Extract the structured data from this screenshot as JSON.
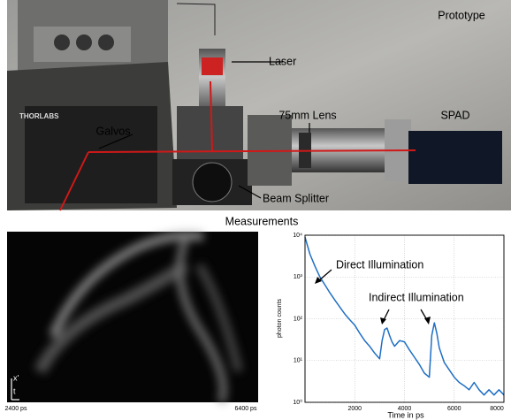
{
  "photo": {
    "labels": [
      "Prototype",
      "Laser",
      "75mm Lens",
      "SPAD",
      "Galvos",
      "Beam Splitter"
    ]
  },
  "section_title": "Measurements",
  "transient_image": {
    "start_label": "2400 ps",
    "end_label": "6400 ps",
    "axis_labels": [
      "x'",
      "t"
    ]
  },
  "chart_data": {
    "type": "line",
    "x_label": "Time in ps",
    "y_label": "photon counts",
    "annotations": [
      "Direct Illumination",
      "Indirect Illumination"
    ],
    "x": [
      0,
      200,
      400,
      600,
      800,
      1000,
      1200,
      1400,
      1600,
      1800,
      2000,
      2200,
      2400,
      2600,
      2800,
      3000,
      3100,
      3200,
      3300,
      3400,
      3500,
      3600,
      3800,
      4000,
      4200,
      4400,
      4600,
      4800,
      5000,
      5100,
      5200,
      5300,
      5400,
      5600,
      5800,
      6000,
      6200,
      6400,
      6600,
      6800,
      7000,
      7200,
      7400,
      7600,
      7800,
      8000
    ],
    "values": [
      9000,
      3500,
      1800,
      1000,
      650,
      420,
      280,
      190,
      130,
      95,
      70,
      45,
      30,
      22,
      15,
      11,
      30,
      55,
      60,
      40,
      28,
      22,
      30,
      28,
      18,
      12,
      8,
      5,
      4,
      40,
      80,
      45,
      20,
      9,
      6,
      4,
      3,
      2.5,
      2,
      3,
      2,
      1.5,
      2,
      1.5,
      2,
      1.5
    ],
    "color": "#1f6fc5",
    "xlim": [
      0,
      8000
    ],
    "xticks": [
      2000,
      4000,
      6000,
      8000
    ],
    "ylim": [
      1,
      10000
    ],
    "yticks": [
      {
        "value": 1,
        "label": "10⁰"
      },
      {
        "value": 10,
        "label": "10¹"
      },
      {
        "value": 100,
        "label": "10²"
      },
      {
        "value": 1000,
        "label": "10³"
      },
      {
        "value": 10000,
        "label": "10⁴"
      }
    ],
    "log_y": true,
    "grid": true
  }
}
